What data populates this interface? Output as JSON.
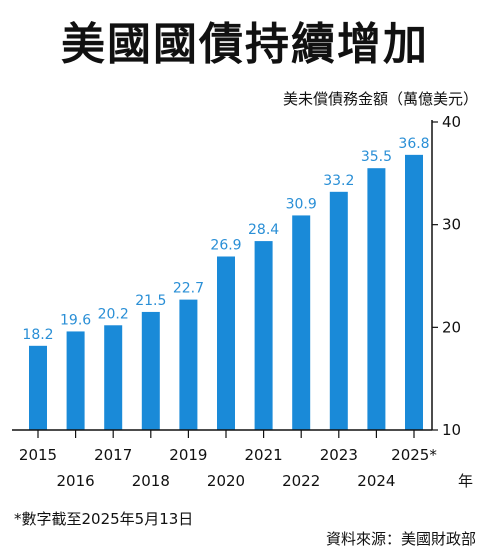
{
  "chart_data": {
    "type": "bar",
    "title": "美國國債持續增加",
    "ylabel": "美未償債務金額（萬億美元）",
    "xlabel": "年",
    "categories": [
      "2015",
      "2016",
      "2017",
      "2018",
      "2019",
      "2020",
      "2021",
      "2022",
      "2023",
      "2024",
      "2025*"
    ],
    "values": [
      18.2,
      19.6,
      20.2,
      21.5,
      22.7,
      26.9,
      28.4,
      30.9,
      33.2,
      35.5,
      36.8
    ],
    "value_labels": [
      "18.2",
      "19.6",
      "20.2",
      "21.5",
      "22.7",
      "26.9",
      "28.4",
      "30.9",
      "33.2",
      "35.5",
      "36.8"
    ],
    "ylim": [
      10,
      40
    ],
    "yticks": [
      "10",
      "20",
      "30",
      "40"
    ],
    "grid": false,
    "bar_color": "#1a8ad8",
    "label_color": "#2a8fd6"
  },
  "footnote": "*數字截至2025年5月13日",
  "source": "資料來源：美國財政部"
}
